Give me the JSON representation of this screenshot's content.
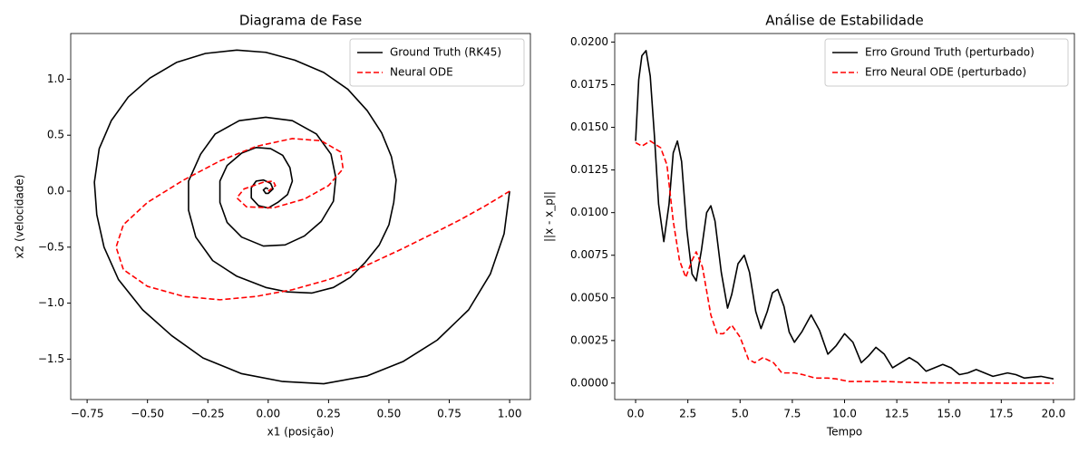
{
  "chart_data": [
    {
      "type": "line",
      "title": "Diagrama de Fase",
      "xlabel": "x1 (posição)",
      "ylabel": "x2 (velocidade)",
      "xlim": [
        -0.818,
        1.086
      ],
      "ylim": [
        -1.861,
        1.408
      ],
      "xticks": [
        {
          "value": -0.75,
          "label": "−0.75"
        },
        {
          "value": -0.5,
          "label": "−0.50"
        },
        {
          "value": -0.25,
          "label": "−0.25"
        },
        {
          "value": 0,
          "label": "0.00"
        },
        {
          "value": 0.25,
          "label": "0.25"
        },
        {
          "value": 0.5,
          "label": "0.50"
        },
        {
          "value": 0.75,
          "label": "0.75"
        },
        {
          "value": 1,
          "label": "1.00"
        }
      ],
      "yticks": [
        {
          "value": -1.5,
          "label": "−1.5"
        },
        {
          "value": -1,
          "label": "−1.0"
        },
        {
          "value": -0.5,
          "label": "−0.5"
        },
        {
          "value": 0,
          "label": "0.0"
        },
        {
          "value": 0.5,
          "label": "0.5"
        },
        {
          "value": 1,
          "label": "1.0"
        }
      ],
      "legend": "upper right",
      "series": [
        {
          "name": "Ground Truth (RK45)",
          "color": "#000000",
          "linestyle": "solid",
          "x": [
            1.0,
            0.977,
            0.92,
            0.83,
            0.7,
            0.56,
            0.41,
            0.23,
            0.06,
            -0.11,
            -0.27,
            -0.4,
            -0.52,
            -0.62,
            -0.68,
            -0.71,
            -0.72,
            -0.7,
            -0.65,
            -0.58,
            -0.49,
            -0.38,
            -0.26,
            -0.13,
            -0.01,
            0.11,
            0.23,
            0.33,
            0.41,
            0.47,
            0.51,
            0.53,
            0.52,
            0.5,
            0.46,
            0.4,
            0.34,
            0.27,
            0.18,
            0.08,
            -0.01,
            -0.13,
            -0.23,
            -0.3,
            -0.33,
            -0.33,
            -0.28,
            -0.22,
            -0.12,
            -0.01,
            0.1,
            0.2,
            0.26,
            0.28,
            0.27,
            0.22,
            0.15,
            0.07,
            -0.02,
            -0.11,
            -0.17,
            -0.2,
            -0.2,
            -0.17,
            -0.11,
            -0.05,
            0.01,
            0.06,
            0.09,
            0.1,
            0.08,
            0.04,
            0.0,
            -0.04,
            -0.07,
            -0.07,
            -0.05,
            -0.02,
            0.01,
            0.02,
            0.0,
            -0.01,
            -0.02,
            -0.01,
            0.0
          ],
          "values": [
            0.0,
            -0.38,
            -0.74,
            -1.06,
            -1.33,
            -1.52,
            -1.65,
            -1.72,
            -1.7,
            -1.63,
            -1.49,
            -1.29,
            -1.06,
            -0.79,
            -0.5,
            -0.21,
            0.08,
            0.38,
            0.63,
            0.84,
            1.01,
            1.15,
            1.23,
            1.26,
            1.24,
            1.17,
            1.06,
            0.91,
            0.72,
            0.52,
            0.31,
            0.1,
            -0.1,
            -0.3,
            -0.48,
            -0.64,
            -0.77,
            -0.86,
            -0.91,
            -0.9,
            -0.86,
            -0.76,
            -0.62,
            -0.41,
            -0.17,
            0.09,
            0.33,
            0.51,
            0.63,
            0.66,
            0.63,
            0.51,
            0.33,
            0.12,
            -0.09,
            -0.27,
            -0.4,
            -0.48,
            -0.49,
            -0.41,
            -0.28,
            -0.1,
            0.09,
            0.23,
            0.34,
            0.39,
            0.38,
            0.32,
            0.21,
            0.09,
            -0.03,
            -0.1,
            -0.15,
            -0.13,
            -0.06,
            0.03,
            0.09,
            0.1,
            0.07,
            0.02,
            -0.02,
            -0.02,
            0.01,
            0.03,
            0.02
          ]
        },
        {
          "name": "Neural ODE",
          "color": "#ff0000",
          "linestyle": "dashed",
          "x": [
            1.0,
            0.9,
            0.8,
            0.7,
            0.55,
            0.4,
            0.25,
            0.1,
            -0.05,
            -0.2,
            -0.35,
            -0.5,
            -0.6,
            -0.63,
            -0.6,
            -0.5,
            -0.35,
            -0.2,
            -0.05,
            0.1,
            0.22,
            0.3,
            0.31,
            0.25,
            0.15,
            0.02,
            -0.09,
            -0.13,
            -0.1,
            -0.02,
            0.02,
            0.03,
            0.0
          ],
          "values": [
            0.0,
            -0.13,
            -0.25,
            -0.36,
            -0.52,
            -0.67,
            -0.79,
            -0.88,
            -0.94,
            -0.97,
            -0.94,
            -0.85,
            -0.7,
            -0.5,
            -0.3,
            -0.1,
            0.1,
            0.27,
            0.4,
            0.47,
            0.45,
            0.35,
            0.2,
            0.05,
            -0.07,
            -0.15,
            -0.14,
            -0.06,
            0.02,
            0.08,
            0.09,
            0.05,
            0.0
          ]
        }
      ]
    },
    {
      "type": "line",
      "title": "Análise de Estabilidade",
      "xlabel": "Tempo",
      "ylabel": "||x - x_p||",
      "xlim": [
        -1.0,
        21.0
      ],
      "ylim": [
        -0.00096,
        0.0205
      ],
      "xticks": [
        {
          "value": 0,
          "label": "0.0"
        },
        {
          "value": 2.5,
          "label": "2.5"
        },
        {
          "value": 5,
          "label": "5.0"
        },
        {
          "value": 7.5,
          "label": "7.5"
        },
        {
          "value": 10,
          "label": "10.0"
        },
        {
          "value": 12.5,
          "label": "12.5"
        },
        {
          "value": 15,
          "label": "15.0"
        },
        {
          "value": 17.5,
          "label": "17.5"
        },
        {
          "value": 20,
          "label": "20.0"
        }
      ],
      "yticks": [
        {
          "value": 0,
          "label": "0.0000"
        },
        {
          "value": 0.0025,
          "label": "0.0025"
        },
        {
          "value": 0.005,
          "label": "0.0050"
        },
        {
          "value": 0.0075,
          "label": "0.0075"
        },
        {
          "value": 0.01,
          "label": "0.0100"
        },
        {
          "value": 0.0125,
          "label": "0.0125"
        },
        {
          "value": 0.015,
          "label": "0.0150"
        },
        {
          "value": 0.0175,
          "label": "0.0175"
        },
        {
          "value": 0.02,
          "label": "0.0200"
        }
      ],
      "legend": "upper right",
      "series": [
        {
          "name": "Erro Ground Truth (perturbado)",
          "color": "#000000",
          "linestyle": "solid",
          "x": [
            0,
            0.15,
            0.3,
            0.5,
            0.7,
            0.9,
            1.1,
            1.35,
            1.6,
            1.8,
            2.0,
            2.2,
            2.45,
            2.7,
            2.9,
            3.15,
            3.4,
            3.6,
            3.8,
            4.1,
            4.4,
            4.6,
            4.9,
            5.2,
            5.45,
            5.75,
            6.0,
            6.3,
            6.55,
            6.8,
            7.1,
            7.35,
            7.6,
            7.95,
            8.4,
            8.8,
            9.2,
            9.6,
            10.0,
            10.4,
            10.8,
            11.15,
            11.5,
            11.9,
            12.3,
            12.7,
            13.1,
            13.5,
            13.9,
            14.3,
            14.7,
            15.1,
            15.5,
            15.9,
            16.3,
            16.7,
            17.1,
            17.45,
            17.8,
            18.2,
            18.6,
            19.0,
            19.4,
            20.0
          ],
          "values": [
            0.0142,
            0.0178,
            0.0192,
            0.0195,
            0.018,
            0.0145,
            0.0105,
            0.0083,
            0.0105,
            0.0135,
            0.0142,
            0.013,
            0.009,
            0.0064,
            0.006,
            0.0078,
            0.01,
            0.0104,
            0.0095,
            0.0065,
            0.0044,
            0.0052,
            0.007,
            0.0075,
            0.0065,
            0.0042,
            0.0032,
            0.0042,
            0.0053,
            0.0055,
            0.0045,
            0.003,
            0.0024,
            0.003,
            0.004,
            0.0031,
            0.0017,
            0.0022,
            0.0029,
            0.0024,
            0.0012,
            0.0016,
            0.0021,
            0.0017,
            0.0009,
            0.0012,
            0.0015,
            0.0012,
            0.0007,
            0.0009,
            0.0011,
            0.0009,
            0.0005,
            0.0006,
            0.0008,
            0.0006,
            0.0004,
            0.0005,
            0.0006,
            0.0005,
            0.0003,
            0.00035,
            0.0004,
            0.00025
          ]
        },
        {
          "name": "Erro Neural ODE (perturbado)",
          "color": "#ff0000",
          "linestyle": "dashed",
          "x": [
            0,
            0.3,
            0.7,
            1.2,
            1.5,
            1.8,
            2.1,
            2.4,
            2.7,
            2.9,
            3.2,
            3.6,
            3.9,
            4.2,
            4.6,
            5.0,
            5.4,
            5.7,
            6.1,
            6.6,
            7.0,
            7.6,
            8.0,
            8.6,
            9.2,
            9.6,
            10.2,
            11.0,
            12.0,
            13.0,
            14.0,
            16.0,
            18.0,
            20.0
          ],
          "values": [
            0.0141,
            0.0139,
            0.0142,
            0.0138,
            0.0128,
            0.0095,
            0.0072,
            0.0062,
            0.0072,
            0.0077,
            0.0068,
            0.004,
            0.0029,
            0.0029,
            0.0034,
            0.0027,
            0.0014,
            0.0012,
            0.0015,
            0.0012,
            0.0006,
            0.0006,
            0.0005,
            0.0003,
            0.0003,
            0.00025,
            0.0001,
            0.0001,
            0.0001,
            5e-05,
            2e-05,
            1e-05,
            0,
            0
          ]
        }
      ]
    }
  ]
}
